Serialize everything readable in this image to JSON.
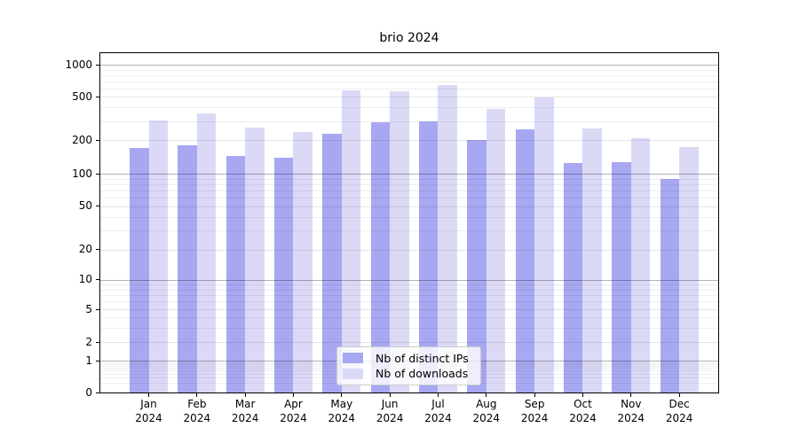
{
  "chart_data": {
    "type": "bar",
    "title": "brio 2024",
    "categories": [
      "Jan 2024",
      "Feb 2024",
      "Mar 2024",
      "Apr 2024",
      "May 2024",
      "Jun 2024",
      "Jul 2024",
      "Aug 2024",
      "Sep 2024",
      "Oct 2024",
      "Nov 2024",
      "Dec 2024"
    ],
    "series": [
      {
        "name": "Nb of distinct IPs",
        "color": "#a8a8f2",
        "values": [
          170,
          180,
          145,
          140,
          230,
          290,
          300,
          200,
          250,
          125,
          128,
          90
        ]
      },
      {
        "name": "Nb of downloads",
        "color": "#dadaf7",
        "values": [
          305,
          350,
          260,
          240,
          580,
          565,
          640,
          390,
          495,
          255,
          210,
          175
        ]
      }
    ],
    "yticks": [
      0,
      1,
      2,
      5,
      10,
      20,
      50,
      100,
      200,
      500,
      1000
    ],
    "ylim": [
      0,
      1200
    ],
    "scale": "log-like (linear below 1)",
    "grid": true,
    "legend_position": "lower center"
  }
}
